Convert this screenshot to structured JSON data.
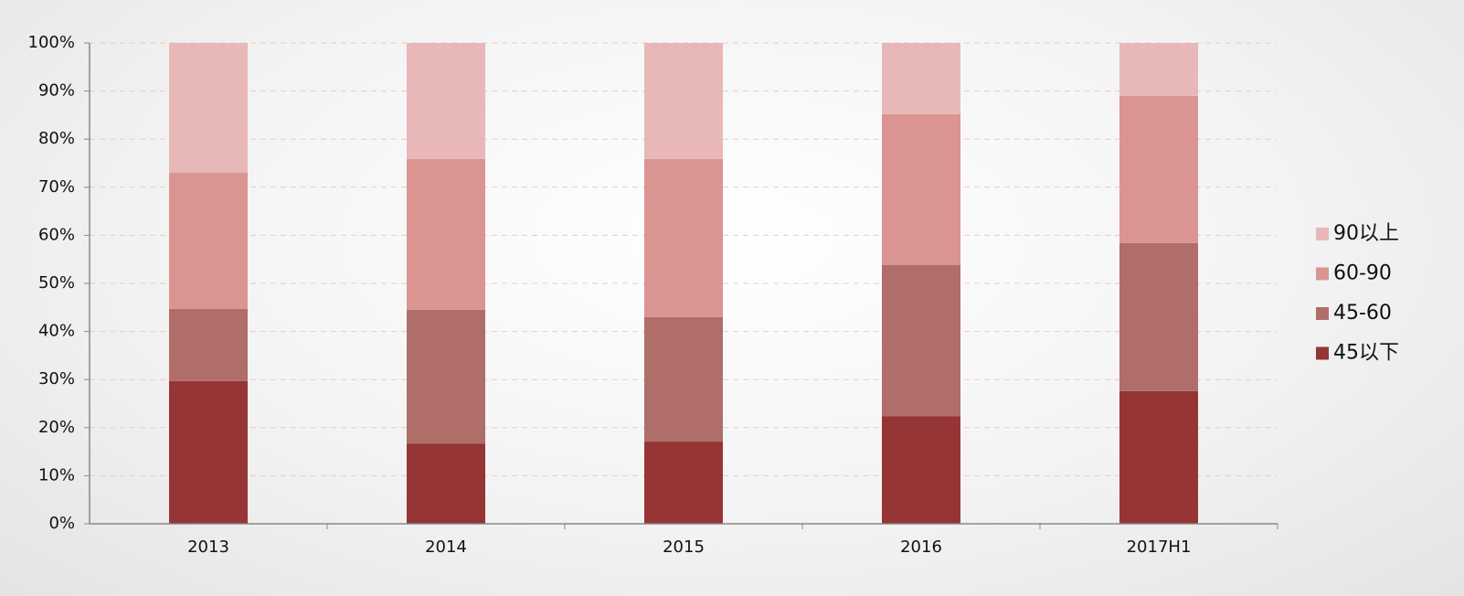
{
  "chart_data": {
    "type": "stacked_bar",
    "categories": [
      "2013",
      "2014",
      "2015",
      "2016",
      "2017H1"
    ],
    "series": [
      {
        "name": "45以下",
        "color": "#963535",
        "values": [
          29.7,
          16.7,
          17.1,
          22.4,
          27.6
        ]
      },
      {
        "name": "45-60",
        "color": "#b06e6a",
        "values": [
          15.0,
          27.8,
          25.9,
          31.4,
          30.8
        ]
      },
      {
        "name": "60-90",
        "color": "#da9593",
        "values": [
          28.3,
          31.4,
          32.9,
          31.4,
          30.6
        ]
      },
      {
        "name": "90以上",
        "color": "#e8b8b8",
        "values": [
          27.0,
          24.1,
          24.1,
          14.8,
          11.0
        ]
      }
    ],
    "ylim": [
      0,
      100
    ],
    "yticks": [
      {
        "value": 0,
        "label": "0%"
      },
      {
        "value": 10,
        "label": "10%"
      },
      {
        "value": 20,
        "label": "20%"
      },
      {
        "value": 30,
        "label": "30%"
      },
      {
        "value": 40,
        "label": "40%"
      },
      {
        "value": 50,
        "label": "50%"
      },
      {
        "value": 60,
        "label": "60%"
      },
      {
        "value": 70,
        "label": "70%"
      },
      {
        "value": 80,
        "label": "80%"
      },
      {
        "value": 90,
        "label": "90%"
      },
      {
        "value": 100,
        "label": "100%"
      }
    ],
    "grid": true,
    "legend": "right"
  }
}
